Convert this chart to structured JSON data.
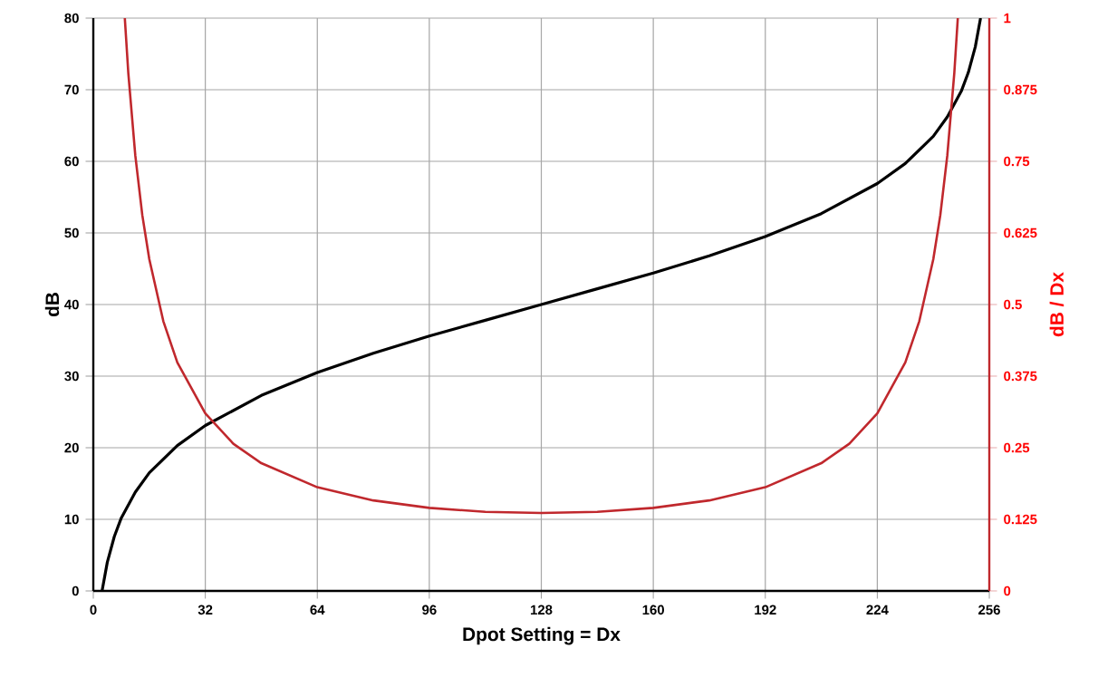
{
  "chart_data": {
    "type": "line",
    "xlabel": "Dpot Setting = Dx",
    "ylabel": "dB",
    "y2label": "dB / Dx",
    "xlim": [
      0,
      256
    ],
    "xticks": [
      0,
      32,
      64,
      96,
      128,
      160,
      192,
      224,
      256
    ],
    "ylim": [
      0,
      80
    ],
    "yticks": [
      0,
      10,
      20,
      30,
      40,
      50,
      60,
      70,
      80
    ],
    "y2lim": [
      0,
      1
    ],
    "y2ticks": [
      0,
      0.125,
      0.25,
      0.375,
      0.5,
      0.625,
      0.75,
      0.875,
      1
    ],
    "grid": true,
    "marker": "none",
    "line_style": "solid",
    "series": [
      {
        "color": "#000000",
        "x": [
          2.5,
          4,
          6,
          8,
          12,
          16,
          24,
          32,
          48,
          64,
          80,
          96,
          112,
          128,
          144,
          160,
          176,
          192,
          208,
          224,
          232,
          240,
          244,
          248,
          250,
          252,
          253.5
        ],
        "values": [
          0,
          4.0,
          7.6,
          10.2,
          13.8,
          16.5,
          20.3,
          23.1,
          27.3,
          30.5,
          33.2,
          35.6,
          37.8,
          40,
          42.2,
          44.4,
          46.8,
          49.5,
          52.7,
          56.9,
          59.7,
          63.5,
          66.2,
          69.8,
          72.4,
          76.0,
          80
        ]
      },
      {
        "color": "#c0282d",
        "axis": "y2",
        "x": [
          9,
          10,
          12,
          14,
          16,
          20,
          24,
          32,
          40,
          48,
          64,
          80,
          96,
          112,
          128,
          144,
          160,
          176,
          192,
          208,
          216,
          224,
          232,
          236,
          240,
          242,
          244,
          246,
          247
        ],
        "values": [
          1.0,
          0.904,
          0.76,
          0.656,
          0.579,
          0.471,
          0.399,
          0.31,
          0.257,
          0.223,
          0.181,
          0.158,
          0.145,
          0.138,
          0.136,
          0.138,
          0.145,
          0.158,
          0.181,
          0.223,
          0.257,
          0.31,
          0.399,
          0.471,
          0.579,
          0.656,
          0.76,
          0.904,
          1.0
        ]
      }
    ]
  }
}
